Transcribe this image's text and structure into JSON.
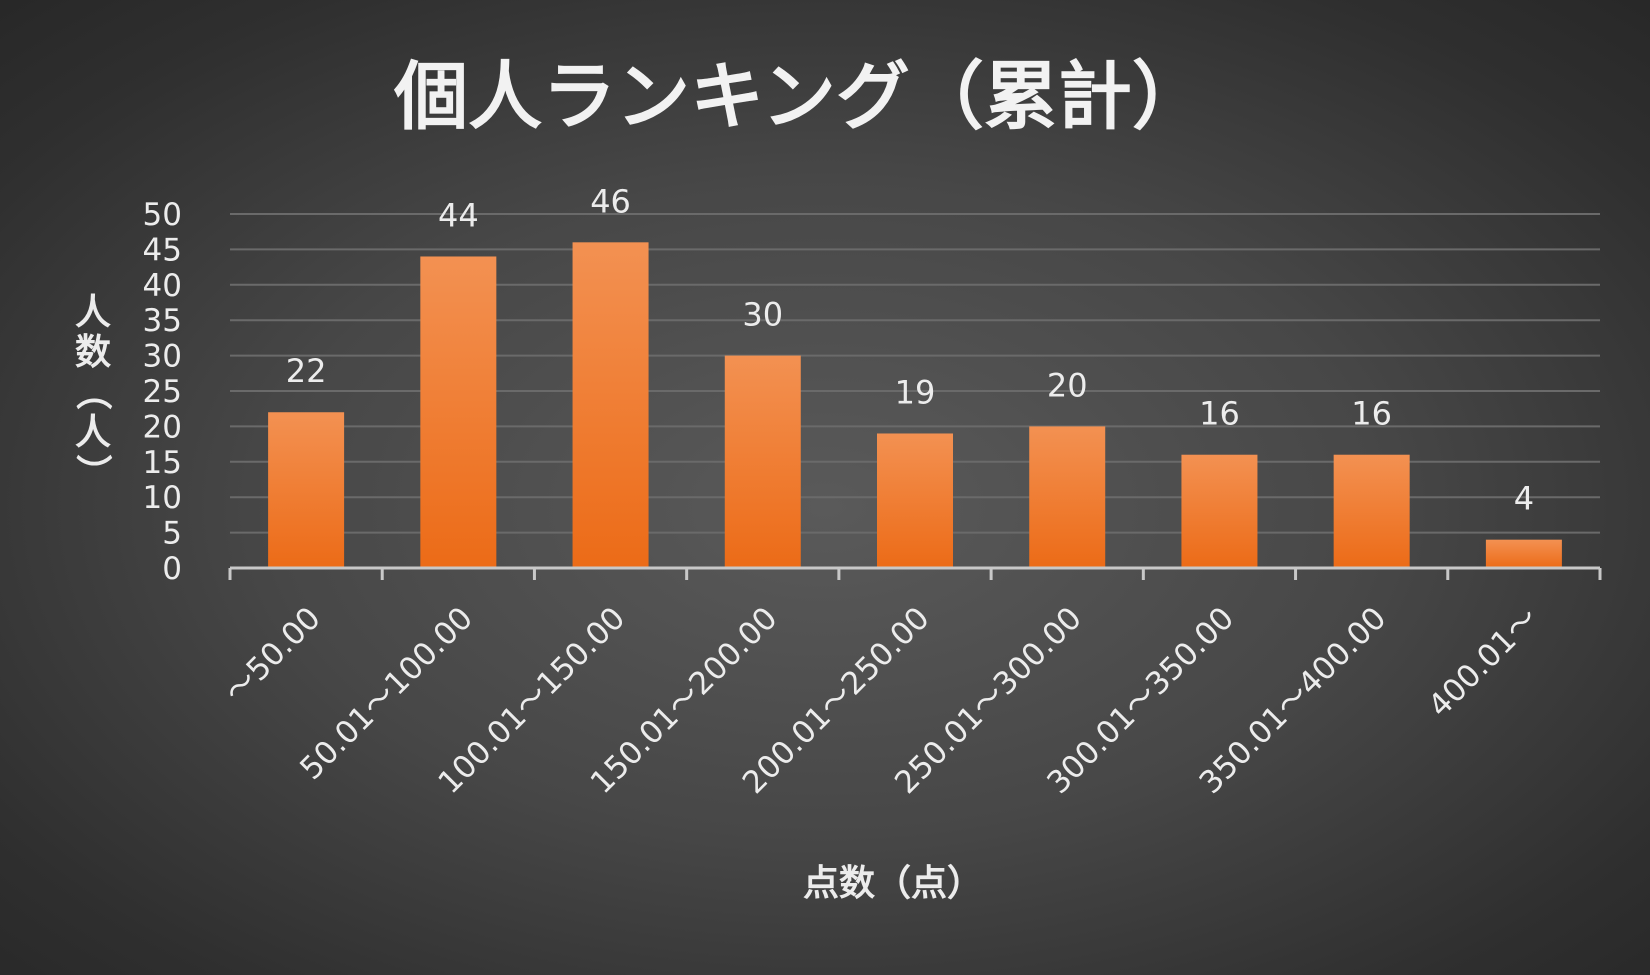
{
  "chart_data": {
    "type": "bar",
    "title": "個人ランキング（累計）",
    "xlabel": "点数（点）",
    "ylabel": "人数（人）",
    "categories": [
      "～50.00",
      "50.01～100.00",
      "100.01～150.00",
      "150.01～200.00",
      "200.01～250.00",
      "250.01～300.00",
      "300.01～350.00",
      "350.01～400.00",
      "400.01～"
    ],
    "series": [
      {
        "values": [
          22,
          44,
          46,
          30,
          19,
          20,
          16,
          16,
          4
        ]
      }
    ],
    "ylim": [
      0,
      50
    ],
    "yticks": [
      "0",
      "5",
      "10",
      "15",
      "20",
      "25",
      "30",
      "35",
      "40",
      "45",
      "50"
    ],
    "ytick_step": 5,
    "grid": true,
    "legend": "none",
    "data_labels": true,
    "colors": {
      "bar_top": "#f39152",
      "bar_bottom": "#ec6b17",
      "gridline": "#6a6a6a",
      "axis": "#c8c8c8"
    }
  }
}
